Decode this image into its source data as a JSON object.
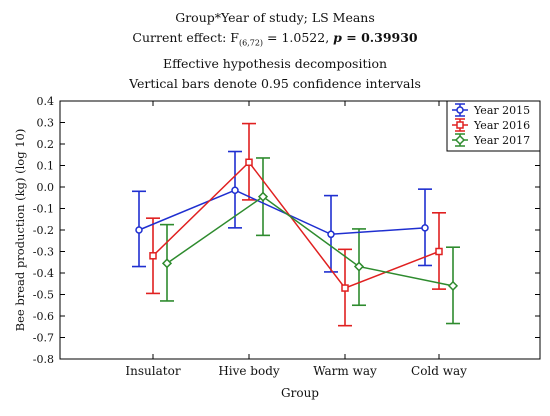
{
  "header": {
    "line1": "Group*Year of study; LS Means",
    "line2_prefix": "Current effect: F",
    "line2_sub": "(6,72)",
    "line2_mid": " = 1.0522, ",
    "line2_p": "p",
    "line2_tail": " = 0.39930",
    "line3": "Effective hypothesis decomposition",
    "line4": "Vertical bars denote 0.95 confidence intervals"
  },
  "chart_data": {
    "type": "line",
    "xlabel": "Group",
    "ylabel": "Bee bread production (kg) (log 10)",
    "ylim": [
      -0.8,
      0.4
    ],
    "yticks": [
      0.4,
      0.3,
      0.2,
      0.1,
      0.0,
      -0.1,
      -0.2,
      -0.3,
      -0.4,
      -0.5,
      -0.6,
      -0.7,
      -0.8
    ],
    "ytick_labels": [
      "0.4",
      "0.3",
      "0.2",
      "0.1",
      "0.0",
      "-0.1",
      "-0.2",
      "-0.3",
      "-0.4",
      "-0.5",
      "-0.6",
      "-0.7",
      "-0.8"
    ],
    "categories": [
      "Insulator",
      "Hive body",
      "Warm way",
      "Cold way"
    ],
    "legend_position": "top-right",
    "series": [
      {
        "name": "Year 2015",
        "color": "#1f2fd0",
        "marker": "circle",
        "values": [
          -0.2,
          -0.015,
          -0.22,
          -0.19
        ],
        "ci_low": [
          -0.37,
          -0.19,
          -0.395,
          -0.365
        ],
        "ci_high": [
          -0.02,
          0.165,
          -0.04,
          -0.01
        ]
      },
      {
        "name": "Year 2016",
        "color": "#e02020",
        "marker": "square",
        "values": [
          -0.32,
          0.115,
          -0.47,
          -0.3
        ],
        "ci_low": [
          -0.495,
          -0.06,
          -0.645,
          -0.475
        ],
        "ci_high": [
          -0.145,
          0.295,
          -0.29,
          -0.12
        ]
      },
      {
        "name": "Year 2017",
        "color": "#2e8b2e",
        "marker": "diamond",
        "values": [
          -0.355,
          -0.045,
          -0.37,
          -0.46
        ],
        "ci_low": [
          -0.53,
          -0.225,
          -0.55,
          -0.635
        ],
        "ci_high": [
          -0.175,
          0.135,
          -0.195,
          -0.28
        ]
      }
    ]
  }
}
